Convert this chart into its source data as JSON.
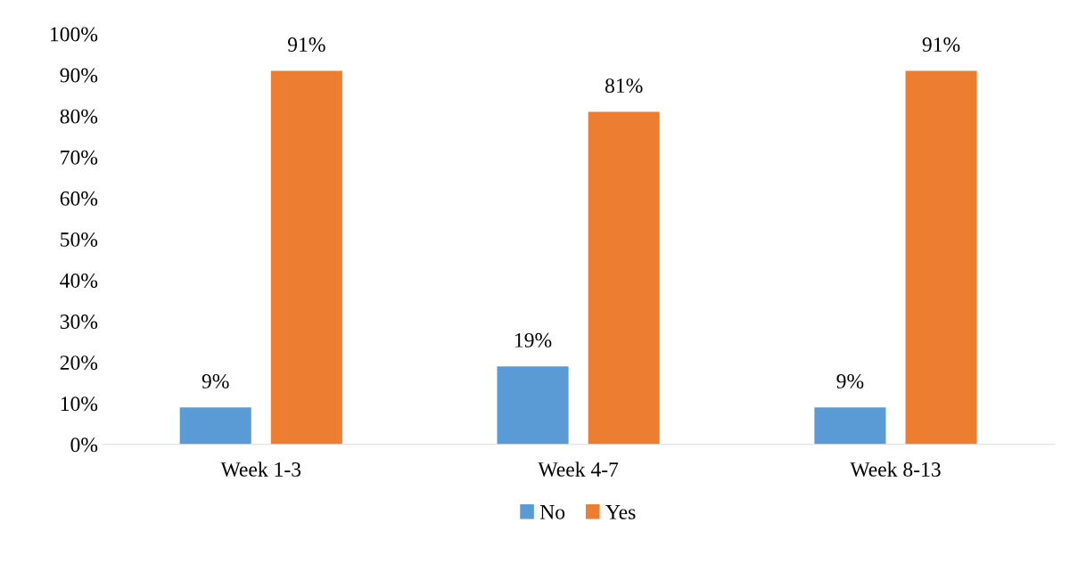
{
  "chart_data": {
    "type": "bar",
    "categories": [
      "Week 1-3",
      "Week 4-7",
      "Week 8-13"
    ],
    "series": [
      {
        "name": "No",
        "color": "#5b9bd5",
        "values": [
          9,
          19,
          9
        ],
        "value_labels": [
          "9%",
          "19%",
          "9%"
        ]
      },
      {
        "name": "Yes",
        "color": "#ed7d31",
        "values": [
          91,
          81,
          91
        ],
        "value_labels": [
          "91%",
          "81%",
          "91%"
        ]
      }
    ],
    "ylim": [
      0,
      100
    ],
    "yticks": [
      {
        "value": 0,
        "label": "0%"
      },
      {
        "value": 10,
        "label": "10%"
      },
      {
        "value": 20,
        "label": "20%"
      },
      {
        "value": 30,
        "label": "30%"
      },
      {
        "value": 40,
        "label": "40%"
      },
      {
        "value": 50,
        "label": "50%"
      },
      {
        "value": 60,
        "label": "60%"
      },
      {
        "value": 70,
        "label": "70%"
      },
      {
        "value": 80,
        "label": "80%"
      },
      {
        "value": 90,
        "label": "90%"
      },
      {
        "value": 100,
        "label": "100%"
      }
    ],
    "grid": false,
    "legend": "bottom"
  }
}
